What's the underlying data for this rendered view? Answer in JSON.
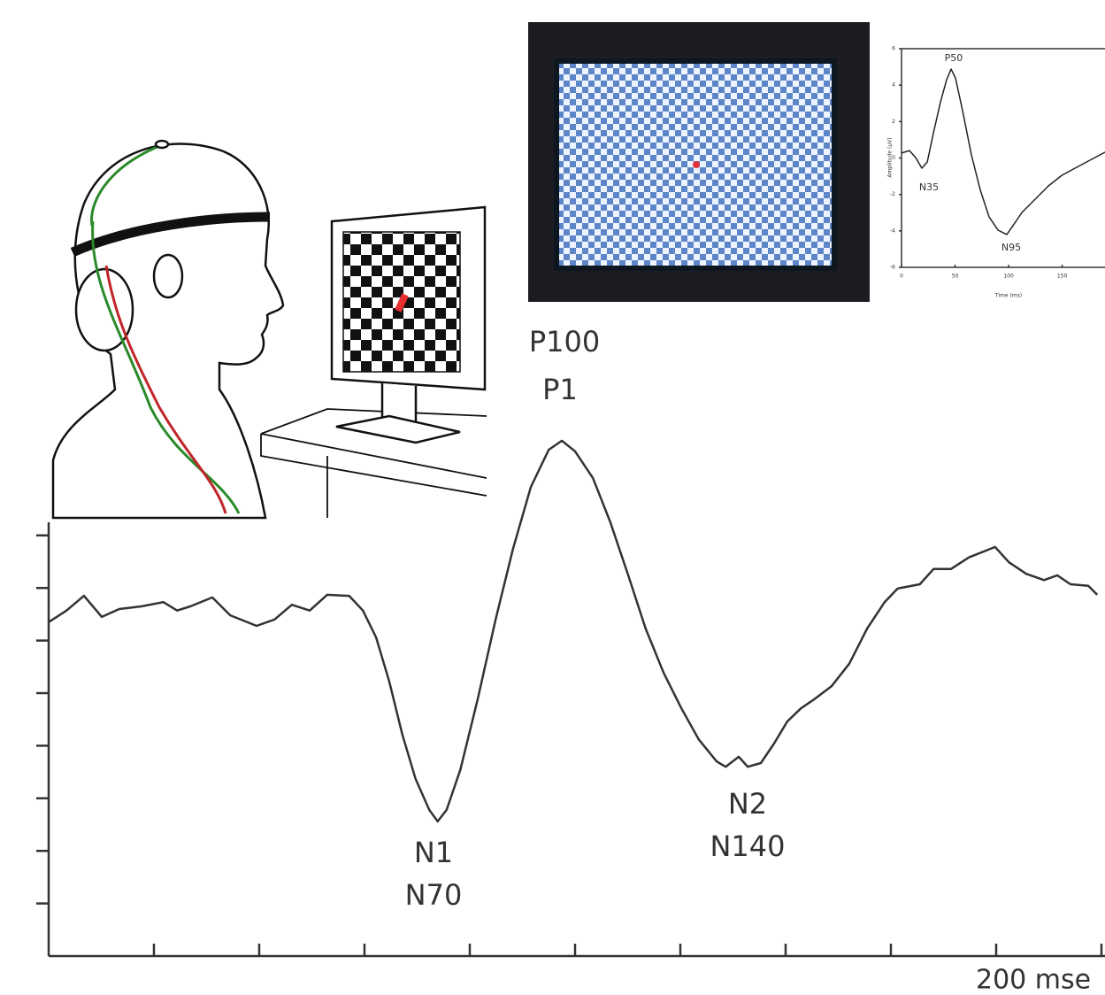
{
  "chart_data": [
    {
      "type": "line",
      "x": [
        0,
        3.4,
        6.7,
        10.1,
        13.4,
        17.6,
        21.8,
        24.4,
        26.9,
        31.1,
        34.5,
        39.5,
        42.9,
        46.2,
        49.6,
        52.9,
        57.1,
        59.7,
        62.2,
        64.7,
        67.2,
        69.7,
        72.3,
        73.9,
        75.6,
        78.2,
        81.5,
        84.9,
        88.2,
        91.6,
        95.0,
        97.5,
        100.0,
        103.4,
        106.7,
        110.1,
        113.4,
        116.8,
        120.2,
        123.5,
        126.9,
        128.6,
        131.1,
        132.8,
        135.3,
        137.8,
        140.3,
        142.9,
        145.4,
        148.7,
        152.1,
        155.5,
        158.8,
        161.3,
        165.5,
        168.1,
        171.4,
        174.8,
        179.8,
        182.4,
        185.7,
        189.1,
        191.6,
        194.1,
        197.5,
        199.2
      ],
      "values": [
        6.35,
        6.57,
        6.85,
        6.45,
        6.6,
        6.65,
        6.73,
        6.57,
        6.65,
        6.82,
        6.48,
        6.28,
        6.4,
        6.68,
        6.57,
        6.87,
        6.85,
        6.57,
        6.06,
        5.22,
        4.21,
        3.37,
        2.78,
        2.56,
        2.78,
        3.54,
        4.88,
        6.4,
        7.74,
        8.92,
        9.63,
        9.8,
        9.6,
        9.09,
        8.25,
        7.24,
        6.23,
        5.39,
        4.71,
        4.12,
        3.7,
        3.6,
        3.79,
        3.6,
        3.67,
        4.04,
        4.46,
        4.71,
        4.88,
        5.13,
        5.56,
        6.23,
        6.73,
        6.99,
        7.07,
        7.36,
        7.36,
        7.58,
        7.78,
        7.49,
        7.27,
        7.15,
        7.24,
        7.07,
        7.04,
        6.87
      ],
      "color": "#333333",
      "xlim": [
        0,
        200
      ],
      "xticks": [
        20,
        40,
        60,
        80,
        100,
        120,
        140,
        160,
        180,
        {
          "value": 200,
          "label": "200 mse"
        }
      ],
      "ylim": [
        0,
        10
      ],
      "yticks": [
        1,
        2,
        3,
        4,
        5,
        6,
        7,
        8
      ],
      "annotations": [
        "P100",
        "P1",
        "N1",
        "N70",
        "N2",
        "N140"
      ]
    },
    {
      "type": "line",
      "x_label": "Time (ms)",
      "y_label": "Amplitude (µV)",
      "x": [
        0,
        7.4,
        13.2,
        19.0,
        24.0,
        29.8,
        36.4,
        42.1,
        46.3,
        50.4,
        57.0,
        65.3,
        73.6,
        81.8,
        90.1,
        98.3,
        104.1,
        112.4,
        124.8,
        137.2,
        149.6,
        162.0,
        174.4,
        190.1
      ],
      "values": [
        0.27,
        0.41,
        0.02,
        -0.56,
        -0.22,
        1.38,
        3.08,
        4.3,
        4.88,
        4.39,
        2.6,
        0.17,
        -1.77,
        -3.23,
        -3.96,
        -4.2,
        -3.71,
        -2.99,
        -2.26,
        -1.53,
        -0.95,
        -0.56,
        -0.17,
        0.32
      ],
      "color": "#222222",
      "xlim": [
        0,
        190
      ],
      "xticks": [
        0,
        50,
        100,
        150
      ],
      "ylim": [
        -6,
        6
      ],
      "yticks": [
        -6,
        -4,
        -2,
        0,
        2,
        4,
        6
      ],
      "annotations": [
        "P50",
        "N35",
        "N95"
      ]
    }
  ]
}
